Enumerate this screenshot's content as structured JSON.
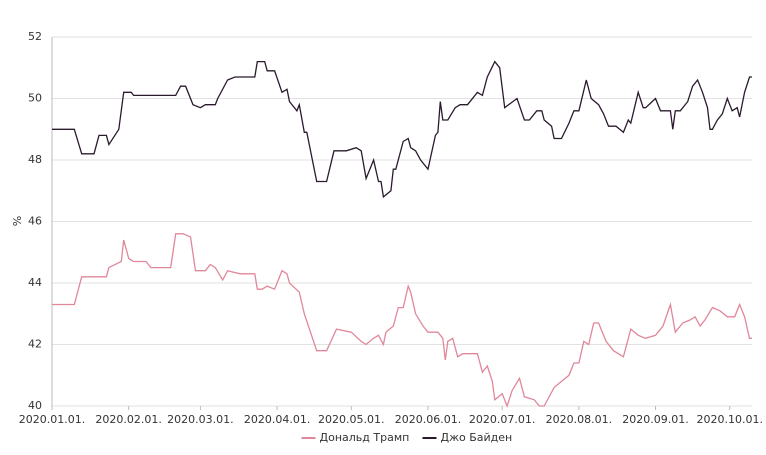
{
  "chart_data": {
    "type": "line",
    "y_label": "%",
    "xlim": [
      "2020-01-01",
      "2020-10-10"
    ],
    "xticks": [
      {
        "value": "2020-01-01",
        "label": "2020.01.01."
      },
      {
        "value": "2020-02-01",
        "label": "2020.02.01."
      },
      {
        "value": "2020-03-01",
        "label": "2020.03.01."
      },
      {
        "value": "2020-04-01",
        "label": "2020.04.01."
      },
      {
        "value": "2020-05-01",
        "label": "2020.05.01."
      },
      {
        "value": "2020-06-01",
        "label": "2020.06.01."
      },
      {
        "value": "2020-07-01",
        "label": "2020.07.01."
      },
      {
        "value": "2020-08-01",
        "label": "2020.08.01."
      },
      {
        "value": "2020-09-01",
        "label": "2020.09.01."
      },
      {
        "value": "2020-10-01",
        "label": "2020.10.01."
      }
    ],
    "ylim": [
      40,
      52
    ],
    "yticks": [
      40,
      42,
      44,
      46,
      48,
      50,
      52
    ],
    "grid": true,
    "legend": "bottom",
    "series": [
      {
        "name": "Дональд Трамп",
        "color": "#e0879a",
        "x": [
          "2020-01-01",
          "2020-01-10",
          "2020-01-13",
          "2020-01-23",
          "2020-01-24",
          "2020-01-29",
          "2020-01-30",
          "2020-02-01",
          "2020-02-03",
          "2020-02-08",
          "2020-02-10",
          "2020-02-18",
          "2020-02-20",
          "2020-02-23",
          "2020-02-26",
          "2020-02-28",
          "2020-03-03",
          "2020-03-05",
          "2020-03-07",
          "2020-03-10",
          "2020-03-12",
          "2020-03-17",
          "2020-03-23",
          "2020-03-24",
          "2020-03-26",
          "2020-03-28",
          "2020-03-31",
          "2020-04-03",
          "2020-04-05",
          "2020-04-06",
          "2020-04-10",
          "2020-04-12",
          "2020-04-17",
          "2020-04-21",
          "2020-04-25",
          "2020-05-01",
          "2020-05-05",
          "2020-05-07",
          "2020-05-10",
          "2020-05-12",
          "2020-05-14",
          "2020-05-15",
          "2020-05-18",
          "2020-05-20",
          "2020-05-22",
          "2020-05-24",
          "2020-05-25",
          "2020-05-27",
          "2020-05-30",
          "2020-06-01",
          "2020-06-05",
          "2020-06-07",
          "2020-06-08",
          "2020-06-09",
          "2020-06-11",
          "2020-06-13",
          "2020-06-15",
          "2020-06-21",
          "2020-06-23",
          "2020-06-25",
          "2020-06-27",
          "2020-06-28",
          "2020-07-01",
          "2020-07-03",
          "2020-07-05",
          "2020-07-08",
          "2020-07-10",
          "2020-07-14",
          "2020-07-16",
          "2020-07-18",
          "2020-07-22",
          "2020-07-25",
          "2020-07-28",
          "2020-07-30",
          "2020-08-01",
          "2020-08-03",
          "2020-08-05",
          "2020-08-07",
          "2020-08-09",
          "2020-08-12",
          "2020-08-15",
          "2020-08-19",
          "2020-08-22",
          "2020-08-25",
          "2020-08-28",
          "2020-09-01",
          "2020-09-04",
          "2020-09-07",
          "2020-09-09",
          "2020-09-12",
          "2020-09-15",
          "2020-09-17",
          "2020-09-19",
          "2020-09-21",
          "2020-09-24",
          "2020-09-27",
          "2020-09-30",
          "2020-10-03",
          "2020-10-05",
          "2020-10-07",
          "2020-10-09",
          "2020-10-10"
        ],
        "values": [
          43.3,
          43.3,
          44.2,
          44.2,
          44.5,
          44.7,
          45.4,
          44.8,
          44.7,
          44.7,
          44.5,
          44.5,
          45.6,
          45.6,
          45.5,
          44.4,
          44.4,
          44.6,
          44.5,
          44.1,
          44.4,
          44.3,
          44.3,
          43.8,
          43.8,
          43.9,
          43.8,
          44.4,
          44.3,
          44.0,
          43.7,
          43.0,
          41.8,
          41.8,
          42.5,
          42.4,
          42.1,
          42.0,
          42.2,
          42.3,
          42.0,
          42.4,
          42.6,
          43.2,
          43.2,
          43.9,
          43.7,
          43.0,
          42.6,
          42.4,
          42.4,
          42.2,
          41.5,
          42.1,
          42.2,
          41.6,
          41.7,
          41.7,
          41.1,
          41.3,
          40.8,
          40.2,
          40.4,
          40.0,
          40.5,
          40.9,
          40.3,
          40.2,
          40.0,
          40.0,
          40.6,
          40.8,
          41.0,
          41.4,
          41.4,
          42.1,
          42.0,
          42.7,
          42.7,
          42.1,
          41.8,
          41.6,
          42.5,
          42.3,
          42.2,
          42.3,
          42.6,
          43.3,
          42.4,
          42.7,
          42.8,
          42.9,
          42.6,
          42.8,
          43.2,
          43.1,
          42.9,
          42.9,
          43.3,
          42.9,
          42.2,
          42.2
        ]
      },
      {
        "name": "Джо Байден",
        "color": "#2b1a2e",
        "x": [
          "2020-01-01",
          "2020-01-10",
          "2020-01-13",
          "2020-01-18",
          "2020-01-20",
          "2020-01-23",
          "2020-01-24",
          "2020-01-28",
          "2020-01-30",
          "2020-02-02",
          "2020-02-03",
          "2020-02-20",
          "2020-02-22",
          "2020-02-24",
          "2020-02-27",
          "2020-03-01",
          "2020-03-03",
          "2020-03-07",
          "2020-03-08",
          "2020-03-12",
          "2020-03-15",
          "2020-03-23",
          "2020-03-24",
          "2020-03-27",
          "2020-03-28",
          "2020-03-31",
          "2020-04-03",
          "2020-04-05",
          "2020-04-06",
          "2020-04-09",
          "2020-04-10",
          "2020-04-12",
          "2020-04-13",
          "2020-04-17",
          "2020-04-21",
          "2020-04-24",
          "2020-04-29",
          "2020-05-03",
          "2020-05-05",
          "2020-05-07",
          "2020-05-10",
          "2020-05-12",
          "2020-05-13",
          "2020-05-14",
          "2020-05-17",
          "2020-05-18",
          "2020-05-19",
          "2020-05-22",
          "2020-05-24",
          "2020-05-25",
          "2020-05-27",
          "2020-05-29",
          "2020-06-01",
          "2020-06-04",
          "2020-06-05",
          "2020-06-06",
          "2020-06-07",
          "2020-06-09",
          "2020-06-12",
          "2020-06-14",
          "2020-06-17",
          "2020-06-21",
          "2020-06-23",
          "2020-06-25",
          "2020-06-28",
          "2020-06-30",
          "2020-07-02",
          "2020-07-07",
          "2020-07-10",
          "2020-07-12",
          "2020-07-15",
          "2020-07-17",
          "2020-07-18",
          "2020-07-21",
          "2020-07-22",
          "2020-07-25",
          "2020-07-28",
          "2020-07-30",
          "2020-08-01",
          "2020-08-04",
          "2020-08-06",
          "2020-08-09",
          "2020-08-11",
          "2020-08-13",
          "2020-08-16",
          "2020-08-19",
          "2020-08-21",
          "2020-08-22",
          "2020-08-25",
          "2020-08-27",
          "2020-08-28",
          "2020-09-01",
          "2020-09-03",
          "2020-09-07",
          "2020-09-08",
          "2020-09-09",
          "2020-09-11",
          "2020-09-14",
          "2020-09-16",
          "2020-09-18",
          "2020-09-20",
          "2020-09-22",
          "2020-09-23",
          "2020-09-24",
          "2020-09-26",
          "2020-09-28",
          "2020-09-30",
          "2020-10-01",
          "2020-10-02",
          "2020-10-04",
          "2020-10-05",
          "2020-10-07",
          "2020-10-09",
          "2020-10-10"
        ],
        "values": [
          49.0,
          49.0,
          48.2,
          48.2,
          48.8,
          48.8,
          48.5,
          49.0,
          50.2,
          50.2,
          50.1,
          50.1,
          50.4,
          50.4,
          49.8,
          49.7,
          49.8,
          49.8,
          50.0,
          50.6,
          50.7,
          50.7,
          51.2,
          51.2,
          50.9,
          50.9,
          50.2,
          50.3,
          49.9,
          49.6,
          49.8,
          48.9,
          48.9,
          47.3,
          47.3,
          48.3,
          48.3,
          48.4,
          48.3,
          47.4,
          48.0,
          47.3,
          47.3,
          46.8,
          47.0,
          47.7,
          47.7,
          48.6,
          48.7,
          48.4,
          48.3,
          48.0,
          47.7,
          48.8,
          48.9,
          49.9,
          49.3,
          49.3,
          49.7,
          49.8,
          49.8,
          50.2,
          50.1,
          50.7,
          51.2,
          51.0,
          49.7,
          50.0,
          49.3,
          49.3,
          49.6,
          49.6,
          49.3,
          49.1,
          48.7,
          48.7,
          49.2,
          49.6,
          49.6,
          50.6,
          50.0,
          49.8,
          49.5,
          49.1,
          49.1,
          48.9,
          49.3,
          49.2,
          50.2,
          49.7,
          49.7,
          50.0,
          49.6,
          49.6,
          49.0,
          49.6,
          49.6,
          49.9,
          50.4,
          50.6,
          50.2,
          49.7,
          49.0,
          49.0,
          49.3,
          49.5,
          50.0,
          49.8,
          49.6,
          49.7,
          49.4,
          50.2,
          50.7,
          50.7
        ]
      }
    ]
  }
}
